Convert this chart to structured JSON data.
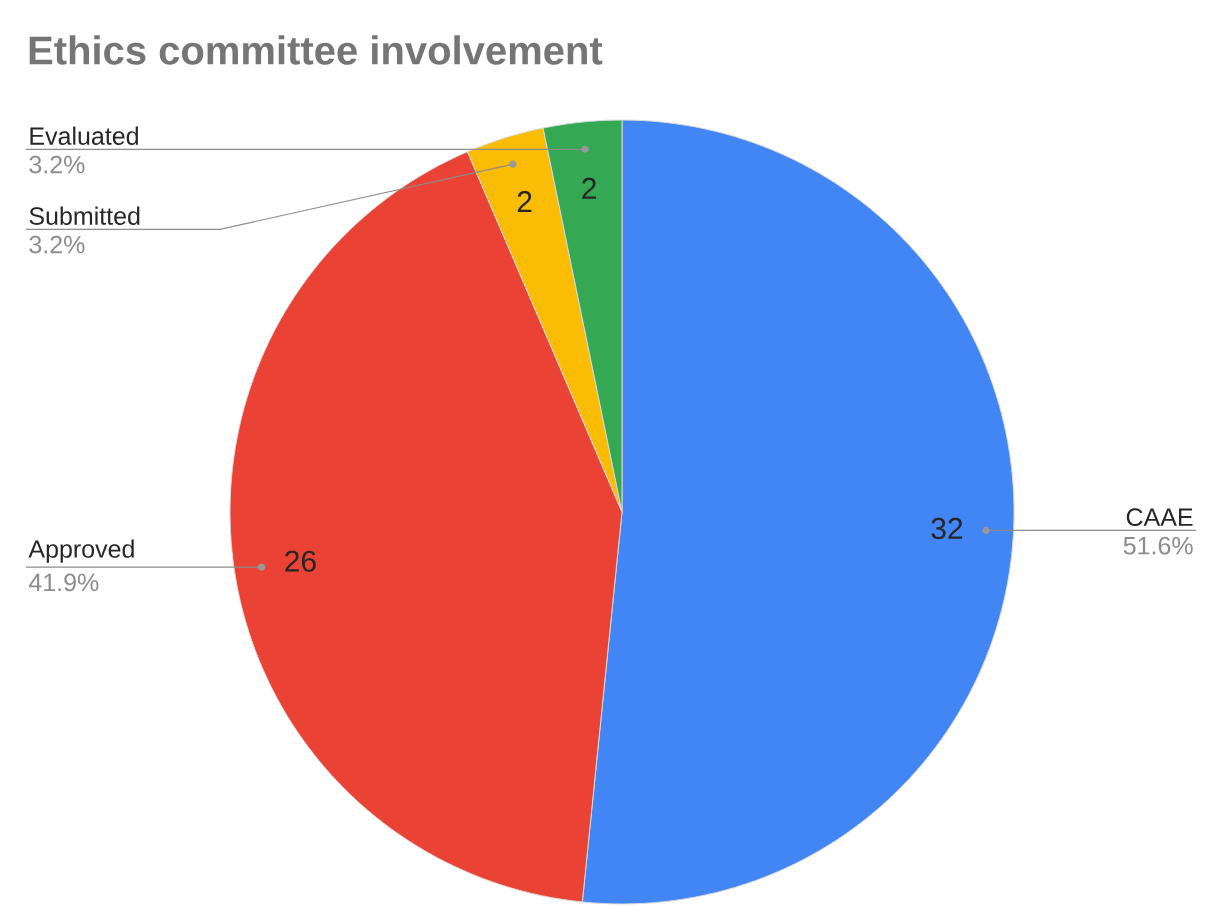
{
  "chart_data": {
    "type": "pie",
    "title": "Ethics committee involvement",
    "categories": [
      "CAAE",
      "Approved",
      "Submitted",
      "Evaluated"
    ],
    "values": [
      32,
      26,
      2,
      2
    ],
    "colors": [
      "#4285f4",
      "#ea4335",
      "#fbbc04",
      "#34a853"
    ],
    "value_labels": [
      "32",
      "26",
      "2",
      "2"
    ],
    "annotations": [
      "51.6%",
      "41.9%",
      "3.2%",
      "3.2%"
    ]
  }
}
